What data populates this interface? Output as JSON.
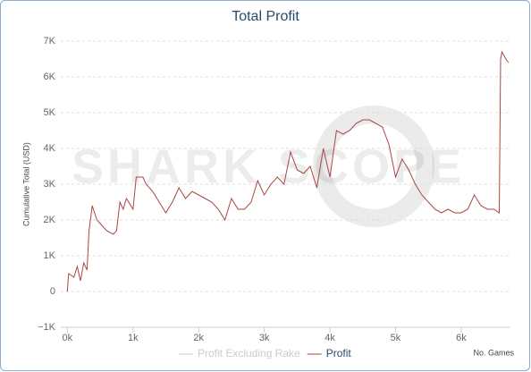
{
  "chart_data": {
    "type": "line",
    "title": "Total Profit",
    "watermark": "SHARK SCOPE",
    "x_label": "No. Games",
    "y_label": "Cumulative Total (USD)",
    "xlim": [
      -100,
      6750
    ],
    "ylim": [
      -1000,
      7000
    ],
    "xticks": [
      {
        "value": 0,
        "label": "0k"
      },
      {
        "value": 1000,
        "label": "1k"
      },
      {
        "value": 2000,
        "label": "2k"
      },
      {
        "value": 3000,
        "label": "3k"
      },
      {
        "value": 4000,
        "label": "4k"
      },
      {
        "value": 5000,
        "label": "5k"
      },
      {
        "value": 6000,
        "label": "6k"
      }
    ],
    "yticks": [
      {
        "value": -1000,
        "label": "−1K"
      },
      0,
      {
        "value": 1000,
        "label": "1K"
      },
      {
        "value": 2000,
        "label": "2K"
      },
      {
        "value": 3000,
        "label": "3K"
      },
      {
        "value": 4000,
        "label": "4K"
      },
      {
        "value": 5000,
        "label": "5K"
      },
      {
        "value": 6000,
        "label": "6K"
      },
      {
        "value": 7000,
        "label": "7K"
      }
    ],
    "grid": true,
    "legend": "bottom",
    "x": [
      0,
      20,
      100,
      150,
      200,
      250,
      300,
      330,
      380,
      450,
      500,
      600,
      700,
      750,
      800,
      850,
      900,
      1000,
      1050,
      1150,
      1200,
      1300,
      1400,
      1500,
      1600,
      1700,
      1800,
      1900,
      2000,
      2100,
      2200,
      2300,
      2400,
      2500,
      2600,
      2700,
      2800,
      2900,
      3000,
      3100,
      3200,
      3300,
      3400,
      3500,
      3600,
      3700,
      3800,
      3900,
      4000,
      4100,
      4200,
      4300,
      4400,
      4500,
      4600,
      4700,
      4800,
      4900,
      5000,
      5100,
      5200,
      5300,
      5400,
      5500,
      5600,
      5700,
      5800,
      5900,
      6000,
      6100,
      6200,
      6300,
      6400,
      6500,
      6580,
      6600,
      6620,
      6680,
      6720
    ],
    "series": [
      {
        "name": "Profit Excluding Rake",
        "color": "#cccccc",
        "visible": false
      },
      {
        "name": "Profit",
        "color": "#aa4643",
        "visible": true,
        "values": [
          0,
          500,
          400,
          700,
          300,
          800,
          600,
          1700,
          2400,
          2000,
          1900,
          1700,
          1600,
          1700,
          2500,
          2300,
          2600,
          2300,
          3200,
          3200,
          3000,
          2800,
          2500,
          2200,
          2500,
          2900,
          2600,
          2800,
          2700,
          2600,
          2500,
          2300,
          2000,
          2600,
          2300,
          2300,
          2500,
          3100,
          2700,
          3000,
          3200,
          3000,
          3900,
          3400,
          3300,
          3500,
          2900,
          4000,
          3200,
          4500,
          4400,
          4500,
          4700,
          4800,
          4800,
          4700,
          4600,
          4100,
          3200,
          3700,
          3400,
          3000,
          2700,
          2500,
          2300,
          2200,
          2300,
          2200,
          2200,
          2300,
          2700,
          2400,
          2300,
          2300,
          2200,
          6500,
          6700,
          6500,
          6400
        ]
      }
    ]
  }
}
